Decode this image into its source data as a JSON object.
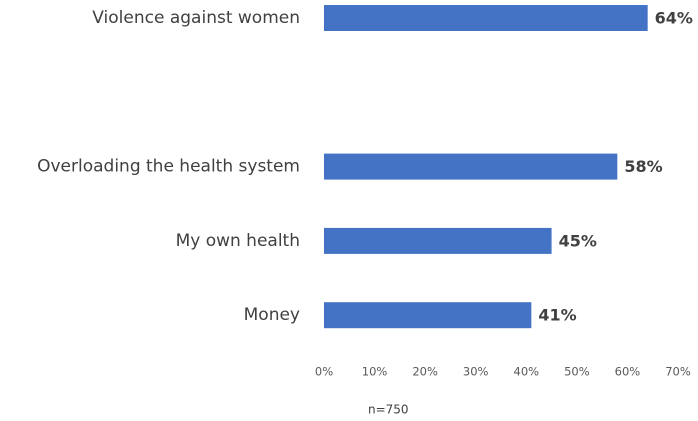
{
  "chart_data": {
    "type": "hbar",
    "categories": [
      "Violence against women",
      null,
      "Overloading the health system",
      "My own health",
      "Money"
    ],
    "values": [
      64,
      null,
      58,
      45,
      41
    ],
    "value_labels": [
      "64%",
      null,
      "58%",
      "45%",
      "41%"
    ],
    "color": "#4472c4",
    "xlim": [
      0,
      70
    ],
    "xticks": [
      {
        "value": 0,
        "label": "0%"
      },
      {
        "value": 10,
        "label": "10%"
      },
      {
        "value": 20,
        "label": "20%"
      },
      {
        "value": 30,
        "label": "30%"
      },
      {
        "value": 40,
        "label": "40%"
      },
      {
        "value": 50,
        "label": "50%"
      },
      {
        "value": 60,
        "label": "60%"
      },
      {
        "value": 70,
        "label": "70%"
      }
    ],
    "grid": false,
    "footnote": "n=750"
  }
}
